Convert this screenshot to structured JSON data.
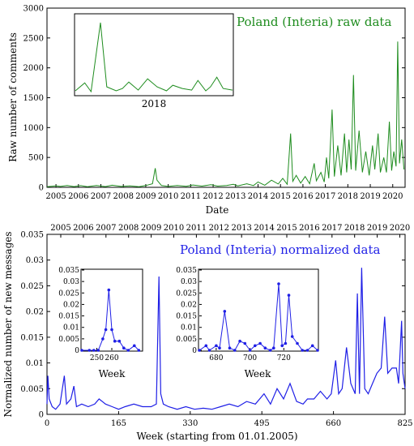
{
  "colors": {
    "raw": "#1e8c1e",
    "norm": "#1f1fe6",
    "axis": "#000000"
  },
  "chart_data": [
    {
      "id": "raw",
      "type": "line",
      "title": "Poland (Interia) raw data",
      "xlabel": "Date",
      "ylabel": "Raw number of comments",
      "xlim": [
        2004.6,
        2020.55
      ],
      "ylim": [
        0,
        3000
      ],
      "yticks": [
        0,
        500,
        1000,
        1500,
        2000,
        2500,
        3000
      ],
      "xticklabels": [
        "2005",
        "2006",
        "2007",
        "2008",
        "2009",
        "2010",
        "2011",
        "2012",
        "2013",
        "2014",
        "2015",
        "2016",
        "2017",
        "2018",
        "2019",
        "2020"
      ],
      "series": [
        {
          "values": [
            [
              2004.6,
              10
            ],
            [
              2005.0,
              25
            ],
            [
              2005.2,
              15
            ],
            [
              2005.5,
              30
            ],
            [
              2005.8,
              12
            ],
            [
              2006.1,
              28
            ],
            [
              2006.4,
              10
            ],
            [
              2006.8,
              30
            ],
            [
              2007.2,
              12
            ],
            [
              2007.5,
              35
            ],
            [
              2007.9,
              15
            ],
            [
              2008.3,
              25
            ],
            [
              2008.7,
              10
            ],
            [
              2009.0,
              30
            ],
            [
              2009.3,
              60
            ],
            [
              2009.42,
              320
            ],
            [
              2009.5,
              120
            ],
            [
              2009.7,
              30
            ],
            [
              2010.0,
              15
            ],
            [
              2010.4,
              30
            ],
            [
              2010.8,
              18
            ],
            [
              2011.1,
              40
            ],
            [
              2011.5,
              20
            ],
            [
              2011.9,
              45
            ],
            [
              2012.2,
              20
            ],
            [
              2012.6,
              30
            ],
            [
              2012.9,
              50
            ],
            [
              2013.1,
              25
            ],
            [
              2013.5,
              60
            ],
            [
              2013.8,
              30
            ],
            [
              2014.0,
              90
            ],
            [
              2014.3,
              35
            ],
            [
              2014.6,
              120
            ],
            [
              2014.9,
              55
            ],
            [
              2015.1,
              150
            ],
            [
              2015.3,
              50
            ],
            [
              2015.45,
              900
            ],
            [
              2015.55,
              100
            ],
            [
              2015.7,
              200
            ],
            [
              2015.9,
              70
            ],
            [
              2016.1,
              180
            ],
            [
              2016.3,
              60
            ],
            [
              2016.5,
              400
            ],
            [
              2016.6,
              110
            ],
            [
              2016.8,
              250
            ],
            [
              2016.95,
              90
            ],
            [
              2017.05,
              500
            ],
            [
              2017.15,
              150
            ],
            [
              2017.3,
              1300
            ],
            [
              2017.4,
              180
            ],
            [
              2017.55,
              700
            ],
            [
              2017.7,
              200
            ],
            [
              2017.85,
              900
            ],
            [
              2017.95,
              250
            ],
            [
              2018.05,
              800
            ],
            [
              2018.15,
              300
            ],
            [
              2018.25,
              1880
            ],
            [
              2018.35,
              280
            ],
            [
              2018.5,
              950
            ],
            [
              2018.65,
              250
            ],
            [
              2018.8,
              600
            ],
            [
              2018.95,
              200
            ],
            [
              2019.1,
              700
            ],
            [
              2019.2,
              300
            ],
            [
              2019.35,
              900
            ],
            [
              2019.45,
              250
            ],
            [
              2019.6,
              500
            ],
            [
              2019.72,
              250
            ],
            [
              2019.85,
              1100
            ],
            [
              2019.95,
              280
            ],
            [
              2020.05,
              600
            ],
            [
              2020.15,
              350
            ],
            [
              2020.22,
              2440
            ],
            [
              2020.3,
              400
            ],
            [
              2020.4,
              800
            ],
            [
              2020.5,
              300
            ]
          ]
        }
      ],
      "inset": {
        "xlabel": "2018",
        "values": [
          [
            0,
            0.05
          ],
          [
            0.06,
            0.15
          ],
          [
            0.1,
            0.04
          ],
          [
            0.16,
            0.9
          ],
          [
            0.2,
            0.1
          ],
          [
            0.26,
            0.05
          ],
          [
            0.3,
            0.08
          ],
          [
            0.34,
            0.16
          ],
          [
            0.4,
            0.06
          ],
          [
            0.46,
            0.2
          ],
          [
            0.52,
            0.1
          ],
          [
            0.58,
            0.05
          ],
          [
            0.62,
            0.12
          ],
          [
            0.68,
            0.08
          ],
          [
            0.74,
            0.06
          ],
          [
            0.78,
            0.18
          ],
          [
            0.83,
            0.05
          ],
          [
            0.86,
            0.1
          ],
          [
            0.9,
            0.22
          ],
          [
            0.94,
            0.08
          ],
          [
            1.0,
            0.06
          ]
        ]
      }
    },
    {
      "id": "norm",
      "type": "line",
      "title": "Poland (Interia) normalized data",
      "xlabel": "Week (starting from 01.01.2005)",
      "ylabel": "Normalized number of new messages",
      "xlim": [
        0,
        825
      ],
      "ylim": [
        0,
        0.035
      ],
      "xticks": [
        0,
        165,
        330,
        495,
        660,
        825
      ],
      "yticks": [
        0,
        0.005,
        0.01,
        0.015,
        0.02,
        0.025,
        0.03,
        0.035
      ],
      "yticklabels": [
        "0",
        "0.005",
        "0.01",
        "0.015",
        "0.02",
        "0.025",
        "0.03",
        "0.035"
      ],
      "top_xticklabels": [
        "2005",
        "2006",
        "2007",
        "2008",
        "2009",
        "2010",
        "2011",
        "2012",
        "2013",
        "2014",
        "2015",
        "2016",
        "2017",
        "2018",
        "2019",
        "2020"
      ],
      "series": [
        {
          "values": [
            [
              0,
              0.002
            ],
            [
              2,
              0.0075
            ],
            [
              5,
              0.003
            ],
            [
              12,
              0.0015
            ],
            [
              20,
              0.001
            ],
            [
              30,
              0.002
            ],
            [
              40,
              0.0075
            ],
            [
              45,
              0.002
            ],
            [
              55,
              0.003
            ],
            [
              62,
              0.0055
            ],
            [
              68,
              0.0015
            ],
            [
              80,
              0.002
            ],
            [
              95,
              0.0015
            ],
            [
              110,
              0.002
            ],
            [
              120,
              0.003
            ],
            [
              135,
              0.002
            ],
            [
              150,
              0.0015
            ],
            [
              165,
              0.001
            ],
            [
              180,
              0.0015
            ],
            [
              200,
              0.002
            ],
            [
              220,
              0.0015
            ],
            [
              240,
              0.0015
            ],
            [
              252,
              0.002
            ],
            [
              258,
              0.0268
            ],
            [
              262,
              0.004
            ],
            [
              268,
              0.002
            ],
            [
              280,
              0.0015
            ],
            [
              300,
              0.001
            ],
            [
              320,
              0.0015
            ],
            [
              340,
              0.001
            ],
            [
              360,
              0.0012
            ],
            [
              380,
              0.001
            ],
            [
              400,
              0.0015
            ],
            [
              420,
              0.002
            ],
            [
              440,
              0.0015
            ],
            [
              460,
              0.0025
            ],
            [
              480,
              0.002
            ],
            [
              500,
              0.004
            ],
            [
              515,
              0.002
            ],
            [
              530,
              0.005
            ],
            [
              545,
              0.003
            ],
            [
              560,
              0.006
            ],
            [
              575,
              0.0025
            ],
            [
              590,
              0.002
            ],
            [
              600,
              0.003
            ],
            [
              615,
              0.003
            ],
            [
              630,
              0.0045
            ],
            [
              645,
              0.003
            ],
            [
              655,
              0.004
            ],
            [
              665,
              0.0105
            ],
            [
              672,
              0.004
            ],
            [
              680,
              0.005
            ],
            [
              690,
              0.013
            ],
            [
              700,
              0.006
            ],
            [
              710,
              0.004
            ],
            [
              715,
              0.0235
            ],
            [
              720,
              0.004
            ],
            [
              725,
              0.0285
            ],
            [
              732,
              0.005
            ],
            [
              740,
              0.004
            ],
            [
              750,
              0.006
            ],
            [
              760,
              0.008
            ],
            [
              770,
              0.009
            ],
            [
              778,
              0.019
            ],
            [
              785,
              0.008
            ],
            [
              795,
              0.009
            ],
            [
              805,
              0.009
            ],
            [
              810,
              0.006
            ],
            [
              817,
              0.0182
            ],
            [
              820,
              0.008
            ],
            [
              825,
              0.005
            ]
          ]
        }
      ],
      "insets": [
        {
          "xlabel": "Week",
          "xlim": [
            240,
            280
          ],
          "ylim": [
            0,
            0.035
          ],
          "xticks": [
            250,
            260
          ],
          "yticks": [
            0,
            0.005,
            0.01,
            0.015,
            0.02,
            0.025,
            0.03,
            0.035
          ],
          "yticklabels": [
            "0",
            "0.005",
            "0.01",
            "0.015",
            "0.02",
            "0.025",
            "0.03",
            "0.035"
          ],
          "values": [
            [
              240,
              0
            ],
            [
              245,
              0
            ],
            [
              248,
              0
            ],
            [
              251,
              0
            ],
            [
              254,
              0.005
            ],
            [
              256,
              0.009
            ],
            [
              258,
              0.0263
            ],
            [
              260,
              0.009
            ],
            [
              262,
              0.004
            ],
            [
              265,
              0.004
            ],
            [
              268,
              0.001
            ],
            [
              271,
              0
            ],
            [
              275,
              0.002
            ],
            [
              278,
              0
            ]
          ]
        },
        {
          "xlabel": "Week",
          "xlim": [
            670,
            740
          ],
          "ylim": [
            0,
            0.035
          ],
          "xticks": [
            680,
            700,
            720
          ],
          "yticks": [
            0,
            0.005,
            0.01,
            0.015,
            0.02,
            0.025,
            0.03,
            0.035
          ],
          "yticklabels": [
            "0",
            "0.005",
            "0.01",
            "0.015",
            "0.02",
            "0.025",
            "0.03",
            "0.035"
          ],
          "values": [
            [
              670,
              0
            ],
            [
              674,
              0.002
            ],
            [
              676,
              0
            ],
            [
              680,
              0.002
            ],
            [
              682,
              0.001
            ],
            [
              685,
              0.017
            ],
            [
              688,
              0.001
            ],
            [
              691,
              0
            ],
            [
              694,
              0.004
            ],
            [
              697,
              0.003
            ],
            [
              700,
              0
            ],
            [
              703,
              0.002
            ],
            [
              706,
              0.003
            ],
            [
              709,
              0.001
            ],
            [
              712,
              0
            ],
            [
              714,
              0.001
            ],
            [
              717,
              0.029
            ],
            [
              719,
              0.002
            ],
            [
              721,
              0.003
            ],
            [
              723,
              0.024
            ],
            [
              725,
              0.006
            ],
            [
              728,
              0.003
            ],
            [
              731,
              0
            ],
            [
              734,
              0
            ],
            [
              737,
              0.002
            ],
            [
              740,
              0
            ]
          ]
        }
      ]
    }
  ]
}
